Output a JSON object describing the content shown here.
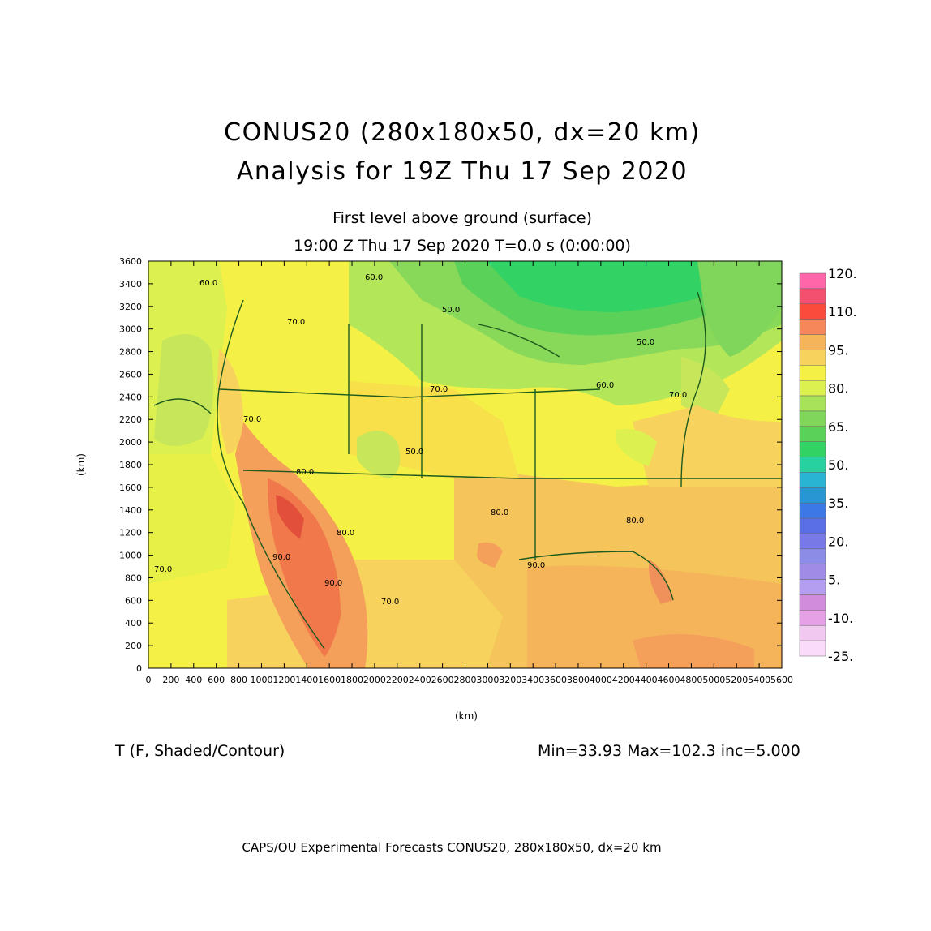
{
  "header": {
    "title_line1": "CONUS20 (280x180x50, dx=20 km)",
    "title_line2": "Analysis for 19Z Thu 17 Sep 2020",
    "level": "First level above ground (surface)",
    "valid_time": "19:00 Z Thu 17 Sep 2020    T=0.0 s (0:00:00)"
  },
  "axes": {
    "x_label": "(km)",
    "y_label": "(km)",
    "x_ticks": [
      "0",
      "200",
      "400",
      "600",
      "800",
      "1000",
      "1200",
      "1400",
      "1600",
      "1800",
      "2000",
      "2200",
      "2400",
      "2600",
      "2800",
      "3000",
      "3200",
      "3400",
      "3600",
      "3800",
      "4000",
      "4200",
      "4400",
      "4600",
      "4800",
      "5000",
      "5200",
      "5400",
      "5600"
    ],
    "y_ticks": [
      "0",
      "200",
      "400",
      "600",
      "800",
      "1000",
      "1200",
      "1400",
      "1600",
      "1800",
      "2000",
      "2200",
      "2400",
      "2600",
      "2800",
      "3000",
      "3200",
      "3400",
      "3600"
    ],
    "x_range": [
      0,
      5600
    ],
    "y_range": [
      0,
      3600
    ]
  },
  "colorbar": {
    "labels": [
      "120.",
      "110.",
      "95.",
      "80.",
      "65.",
      "50.",
      "35.",
      "20.",
      "5.",
      "-10.",
      "-25."
    ],
    "colors": [
      "#ff66aa",
      "#f2506e",
      "#fa4b3c",
      "#f5875a",
      "#f5b45a",
      "#f7d35d",
      "#f4f046",
      "#dcf050",
      "#a8e25a",
      "#7fd65a",
      "#5ad25a",
      "#32d264",
      "#28d2a0",
      "#28b4d2",
      "#2896d2",
      "#3c78e6",
      "#5a6ee6",
      "#7878e6",
      "#8c8ce6",
      "#a08ce6",
      "#b49ef0",
      "#d28cdc",
      "#e6a0e6",
      "#f0c8f0",
      "#fadcfa"
    ]
  },
  "contour_labels": [
    "60.0",
    "60.0",
    "50.0",
    "50.0",
    "60.0",
    "70.0",
    "70.0",
    "70.0",
    "70.0",
    "70.0",
    "80.0",
    "80.0",
    "80.0",
    "80.0",
    "90.0",
    "90.0",
    "90.0",
    "70.0",
    "50.0"
  ],
  "field_info": {
    "variable": "T (F, Shaded/Contour)",
    "stats": "Min=33.93 Max=102.3 inc=5.000"
  },
  "credit": "CAPS/OU Experimental Forecasts   CONUS20, 280x180x50, dx=20 km"
}
